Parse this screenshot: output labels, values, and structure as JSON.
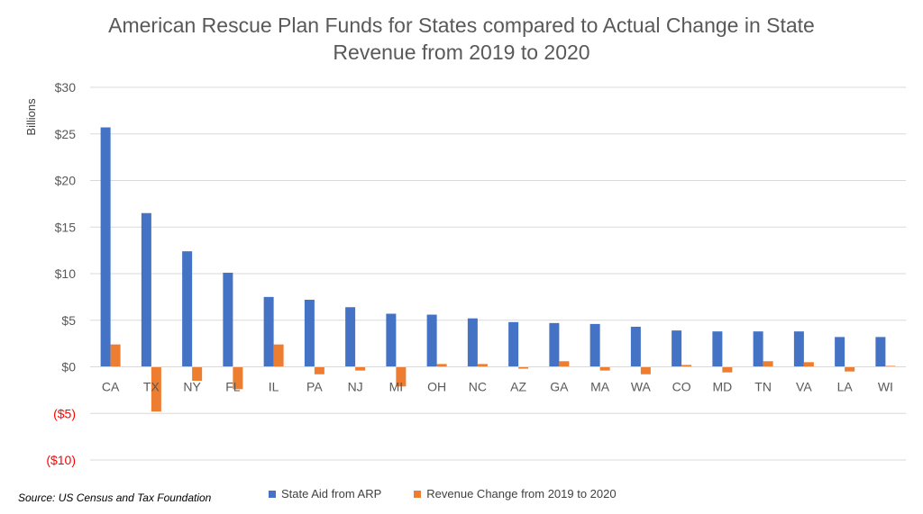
{
  "chart_data": {
    "type": "bar",
    "title_lines": [
      "American Rescue Plan Funds for States compared to Actual Change in State",
      "Revenue from 2019 to 2020"
    ],
    "ylabel": "Billions",
    "xlabel": "",
    "ylim": [
      -10,
      30
    ],
    "yticks": [
      30,
      25,
      20,
      15,
      10,
      5,
      0,
      -5,
      -10
    ],
    "ytick_labels": [
      "$30",
      "$25",
      "$20",
      "$15",
      "$10",
      "$5",
      "$0",
      "($5)",
      "($10)"
    ],
    "grid": true,
    "legend_position": "bottom",
    "categories": [
      "CA",
      "TX",
      "NY",
      "FL",
      "IL",
      "PA",
      "NJ",
      "MI",
      "OH",
      "NC",
      "AZ",
      "GA",
      "MA",
      "WA",
      "CO",
      "MD",
      "TN",
      "VA",
      "LA",
      "WI"
    ],
    "series": [
      {
        "name": "State Aid from ARP",
        "color": "#4472c4",
        "values": [
          25.7,
          16.5,
          12.4,
          10.1,
          7.5,
          7.2,
          6.4,
          5.7,
          5.6,
          5.2,
          4.8,
          4.7,
          4.6,
          4.3,
          3.9,
          3.8,
          3.8,
          3.8,
          3.2,
          3.2
        ]
      },
      {
        "name": "Revenue Change from 2019 to 2020",
        "color": "#ed7d31",
        "values": [
          2.4,
          -4.8,
          -1.5,
          -2.4,
          2.4,
          -0.8,
          -0.4,
          -2.1,
          0.3,
          0.3,
          -0.2,
          0.6,
          -0.4,
          -0.8,
          0.2,
          -0.6,
          0.6,
          0.5,
          -0.5,
          0.1
        ]
      }
    ],
    "negative_label_color": "#ff0000",
    "axis_label_color": "#595959",
    "source": "Source:  US Census and Tax Foundation"
  }
}
